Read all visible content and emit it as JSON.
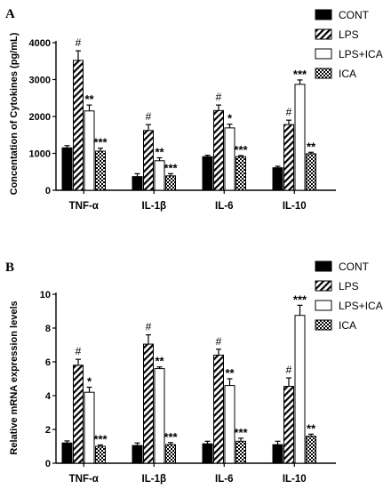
{
  "colors": {
    "ink": "#000000",
    "bar_open": "#ffffff"
  },
  "legend_items": [
    {
      "label": "CONT",
      "pattern": "solid"
    },
    {
      "label": "LPS",
      "pattern": "hatch"
    },
    {
      "label": "LPS+ICA",
      "pattern": "open"
    },
    {
      "label": "ICA",
      "pattern": "check"
    }
  ],
  "chart_data": [
    {
      "type": "bar",
      "panel_label": "A",
      "title": "",
      "xlabel": "",
      "ylabel": "Concentation of Cytokines (pg/mL)",
      "ylim": [
        0,
        4000
      ],
      "yticks": [
        "0",
        "1000",
        "2000",
        "3000",
        "4000"
      ],
      "categories": [
        "TNF-α",
        "IL-1β",
        "IL-6",
        "IL-10"
      ],
      "legend_position": "top-right",
      "series": [
        {
          "name": "CONT",
          "values": [
            1150,
            370,
            910,
            610
          ],
          "errors": [
            60,
            80,
            40,
            40
          ],
          "marks": [
            "",
            "",
            "",
            ""
          ]
        },
        {
          "name": "LPS",
          "values": [
            3520,
            1620,
            2160,
            1780
          ],
          "errors": [
            260,
            160,
            150,
            120
          ],
          "marks": [
            "#",
            "#",
            "#",
            "#"
          ]
        },
        {
          "name": "LPS+ICA",
          "values": [
            2150,
            800,
            1690,
            2870
          ],
          "errors": [
            160,
            80,
            100,
            120
          ],
          "marks": [
            "**",
            "**",
            "*",
            "***"
          ]
        },
        {
          "name": "ICA",
          "values": [
            1060,
            390,
            910,
            990
          ],
          "errors": [
            80,
            60,
            30,
            40
          ],
          "marks": [
            "***",
            "***",
            "***",
            "**"
          ]
        }
      ]
    },
    {
      "type": "bar",
      "panel_label": "B",
      "title": "",
      "xlabel": "",
      "ylabel": "Relative mRNA expression levels",
      "ylim": [
        0,
        10
      ],
      "yticks": [
        "0",
        "2",
        "4",
        "6",
        "8",
        "10"
      ],
      "categories": [
        "TNF-α",
        "IL-1β",
        "IL-6",
        "IL-10"
      ],
      "legend_position": "top-right",
      "series": [
        {
          "name": "CONT",
          "values": [
            1.2,
            1.05,
            1.15,
            1.1
          ],
          "errors": [
            0.12,
            0.15,
            0.15,
            0.2
          ],
          "marks": [
            "",
            "",
            "",
            ""
          ]
        },
        {
          "name": "LPS",
          "values": [
            5.8,
            7.05,
            6.4,
            4.55
          ],
          "errors": [
            0.35,
            0.55,
            0.35,
            0.5
          ],
          "marks": [
            "#",
            "#",
            "#",
            "#"
          ]
        },
        {
          "name": "LPS+ICA",
          "values": [
            4.2,
            5.6,
            4.6,
            8.75
          ],
          "errors": [
            0.3,
            0.1,
            0.4,
            0.6
          ],
          "marks": [
            "*",
            "**",
            "**",
            "***"
          ]
        },
        {
          "name": "ICA",
          "values": [
            1.0,
            1.1,
            1.3,
            1.6
          ],
          "errors": [
            0.08,
            0.12,
            0.18,
            0.12
          ],
          "marks": [
            "***",
            "***",
            "***",
            "**"
          ]
        }
      ]
    }
  ]
}
